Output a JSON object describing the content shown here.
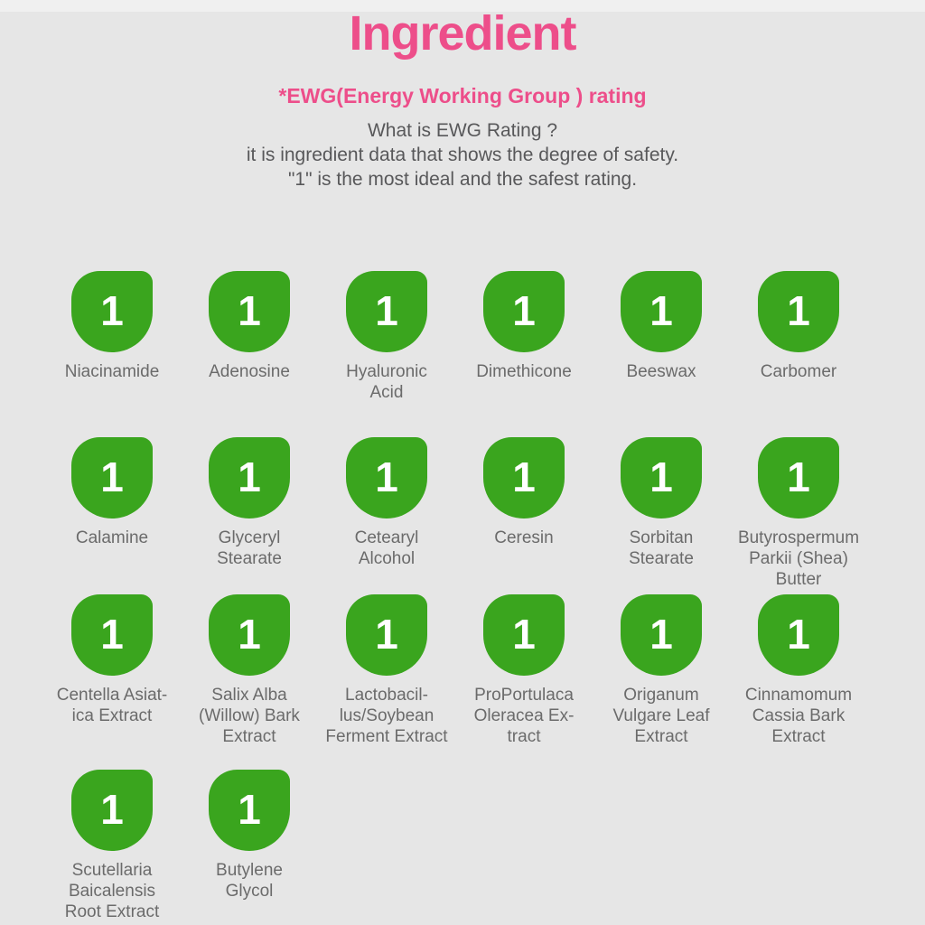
{
  "colors": {
    "accent_pink": "#ed4e8a",
    "badge_green": "#3aa51e",
    "badge_number_white": "#ffffff",
    "text_gray": "#58585a",
    "label_gray": "#6b6b6b",
    "background": "#e6e6e6",
    "top_strip": "#f0f0f0"
  },
  "header": {
    "title": "Ingredient",
    "rating_heading": "*EWG(Energy Working Group ) rating",
    "rating_description": "What is EWG Rating ?\nit is ingredient data that shows the degree of safety.\n\"1\" is the most ideal and the safest rating."
  },
  "ingredients": [
    {
      "rating": "1",
      "name": "Niacinamide"
    },
    {
      "rating": "1",
      "name": "Adenosine"
    },
    {
      "rating": "1",
      "name": "Hyaluronic\nAcid"
    },
    {
      "rating": "1",
      "name": "Dimethicone"
    },
    {
      "rating": "1",
      "name": "Beeswax"
    },
    {
      "rating": "1",
      "name": "Carbomer"
    },
    {
      "rating": "1",
      "name": "Calamine"
    },
    {
      "rating": "1",
      "name": "Glyceryl\nStearate"
    },
    {
      "rating": "1",
      "name": "Cetearyl\nAlcohol"
    },
    {
      "rating": "1",
      "name": "Ceresin"
    },
    {
      "rating": "1",
      "name": "Sorbitan\nStearate"
    },
    {
      "rating": "1",
      "name": "Butyrospermum\nParkii (Shea)\nButter"
    },
    {
      "rating": "1",
      "name": "Centella Asiat-\nica Extract"
    },
    {
      "rating": "1",
      "name": "Salix Alba\n(Willow) Bark\nExtract"
    },
    {
      "rating": "1",
      "name": "Lactobacil-\nlus/Soybean\nFerment Extract"
    },
    {
      "rating": "1",
      "name": "ProPortulaca\nOleracea Ex-\ntract"
    },
    {
      "rating": "1",
      "name": "Origanum\nVulgare Leaf\nExtract"
    },
    {
      "rating": "1",
      "name": "Cinnamomum\nCassia Bark\nExtract"
    },
    {
      "rating": "1",
      "name": "Scutellaria\nBaicalensis\nRoot Extract"
    },
    {
      "rating": "1",
      "name": "Butylene\nGlycol"
    }
  ]
}
